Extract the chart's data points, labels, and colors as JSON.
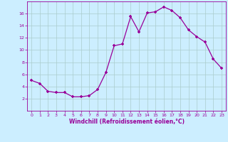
{
  "x": [
    0,
    1,
    2,
    3,
    4,
    5,
    6,
    7,
    8,
    9,
    10,
    11,
    12,
    13,
    14,
    15,
    16,
    17,
    18,
    19,
    20,
    21,
    22,
    23
  ],
  "y": [
    5.0,
    4.5,
    3.2,
    3.0,
    3.0,
    2.3,
    2.3,
    2.5,
    3.5,
    6.3,
    10.7,
    11.0,
    15.5,
    13.0,
    16.1,
    16.3,
    17.1,
    16.5,
    15.3,
    13.3,
    12.2,
    11.3,
    8.5,
    7.0
  ],
  "line_color": "#990099",
  "marker": "+",
  "marker_size": 3,
  "bg_color": "#cceeff",
  "grid_color": "#aacccc",
  "xlabel": "Windchill (Refroidissement éolien,°C)",
  "xlabel_color": "#990099",
  "tick_color": "#990099",
  "ylim": [
    0,
    18
  ],
  "xlim": [
    -0.5,
    23.5
  ],
  "yticks": [
    2,
    4,
    6,
    8,
    10,
    12,
    14,
    16
  ],
  "xticks": [
    0,
    1,
    2,
    3,
    4,
    5,
    6,
    7,
    8,
    9,
    10,
    11,
    12,
    13,
    14,
    15,
    16,
    17,
    18,
    19,
    20,
    21,
    22,
    23
  ]
}
